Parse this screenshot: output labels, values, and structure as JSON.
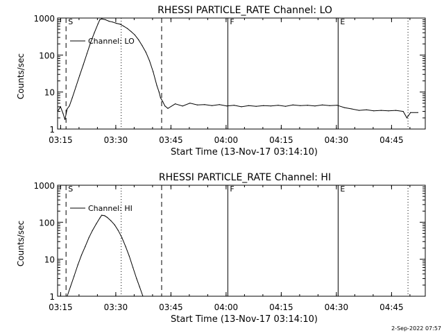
{
  "footer_timestamp": "2-Sep-2022 07:57",
  "chart_data": [
    {
      "type": "line",
      "title": "RHESSI PARTICLE_RATE Channel: LO",
      "xlabel": "Start Time (13-Nov-17 03:14:10)",
      "ylabel": "Counts/sec",
      "yscale": "log",
      "xlim": [
        0,
        100
      ],
      "ylim": [
        1,
        1000
      ],
      "x_units": "minutes after 03:14:10",
      "xticks": [
        {
          "t": 0.83,
          "label": "03:15"
        },
        {
          "t": 15.83,
          "label": "03:30"
        },
        {
          "t": 30.83,
          "label": "03:45"
        },
        {
          "t": 45.83,
          "label": "04:00"
        },
        {
          "t": 60.83,
          "label": "04:15"
        },
        {
          "t": 75.83,
          "label": "04:30"
        },
        {
          "t": 90.83,
          "label": "04:45"
        }
      ],
      "yticks": [
        {
          "v": 1,
          "label": "1"
        },
        {
          "v": 10,
          "label": "10"
        },
        {
          "v": 100,
          "label": "100"
        },
        {
          "v": 1000,
          "label": "1000"
        }
      ],
      "legend": "Channel: LO",
      "markers": [
        {
          "t": 2.3,
          "style": "dashed",
          "label": "S"
        },
        {
          "t": 17.3,
          "style": "dotted",
          "label": ""
        },
        {
          "t": 28.3,
          "style": "dashed",
          "label": ""
        },
        {
          "t": 46.3,
          "style": "solid",
          "label": "F"
        },
        {
          "t": 76.3,
          "style": "solid",
          "label": "E"
        },
        {
          "t": 95.3,
          "style": "dotted",
          "label": ""
        }
      ],
      "series": [
        {
          "name": "Channel: LO",
          "x": [
            0,
            0.8,
            1.5,
            2,
            2.6,
            3.2,
            4,
            5,
            6,
            7,
            8,
            9,
            10,
            11,
            11.5,
            12,
            13,
            14,
            15,
            16,
            17,
            18,
            19,
            20,
            21,
            22,
            23,
            24,
            25,
            26,
            27,
            27.6,
            28,
            28.6,
            29.2,
            30,
            32,
            34,
            36,
            38,
            40,
            42,
            44,
            46,
            48,
            50,
            52,
            54,
            56,
            58,
            60,
            62,
            64,
            66,
            68,
            70,
            72,
            74,
            76,
            78,
            80,
            82,
            84,
            86,
            88,
            90,
            92,
            94,
            95,
            96,
            98
          ],
          "y": [
            3,
            4,
            2.6,
            1.8,
            3.5,
            4.2,
            7,
            14,
            28,
            55,
            110,
            220,
            400,
            700,
            900,
            950,
            900,
            820,
            780,
            720,
            680,
            600,
            520,
            430,
            350,
            260,
            180,
            120,
            70,
            35,
            15,
            10,
            7,
            5.5,
            4.2,
            3.6,
            4.8,
            4.2,
            5,
            4.5,
            4.6,
            4.3,
            4.6,
            4.2,
            4.4,
            4,
            4.3,
            4.1,
            4.3,
            4.2,
            4.4,
            4.1,
            4.5,
            4.3,
            4.4,
            4.2,
            4.5,
            4.3,
            4.4,
            3.8,
            3.5,
            3.2,
            3.3,
            3.1,
            3.2,
            3.1,
            3.2,
            3,
            2,
            2.8,
            2.8
          ]
        }
      ]
    },
    {
      "type": "line",
      "title": "RHESSI PARTICLE_RATE Channel: HI",
      "xlabel": "Start Time (13-Nov-17 03:14:10)",
      "ylabel": "Counts/sec",
      "yscale": "log",
      "xlim": [
        0,
        100
      ],
      "ylim": [
        1,
        1000
      ],
      "x_units": "minutes after 03:14:10",
      "xticks": [
        {
          "t": 0.83,
          "label": "03:15"
        },
        {
          "t": 15.83,
          "label": "03:30"
        },
        {
          "t": 30.83,
          "label": "03:45"
        },
        {
          "t": 45.83,
          "label": "04:00"
        },
        {
          "t": 60.83,
          "label": "04:15"
        },
        {
          "t": 75.83,
          "label": "04:30"
        },
        {
          "t": 90.83,
          "label": "04:45"
        }
      ],
      "yticks": [
        {
          "v": 1,
          "label": "1"
        },
        {
          "v": 10,
          "label": "10"
        },
        {
          "v": 100,
          "label": "100"
        },
        {
          "v": 1000,
          "label": "1000"
        }
      ],
      "legend": "Channel: HI",
      "markers": [
        {
          "t": 2.3,
          "style": "dashed",
          "label": "S"
        },
        {
          "t": 17.3,
          "style": "dotted",
          "label": ""
        },
        {
          "t": 28.3,
          "style": "dashed",
          "label": ""
        },
        {
          "t": 46.3,
          "style": "solid",
          "label": "F"
        },
        {
          "t": 76.3,
          "style": "solid",
          "label": "E"
        },
        {
          "t": 95.3,
          "style": "dotted",
          "label": ""
        }
      ],
      "series": [
        {
          "name": "Channel: HI",
          "x": [
            2.6,
            3.5,
            4.5,
            5.5,
            6.5,
            7.5,
            8.5,
            9.5,
            10.5,
            11.5,
            12,
            12.8,
            13.5,
            14.5,
            15.5,
            16.5,
            17.5,
            18.5,
            19.5,
            20.5,
            21.5,
            22.3,
            23.2
          ],
          "y": [
            1,
            1.8,
            3.5,
            7,
            13,
            22,
            38,
            60,
            90,
            130,
            155,
            150,
            135,
            110,
            85,
            60,
            38,
            22,
            12,
            6,
            3,
            1.8,
            1
          ]
        }
      ]
    }
  ]
}
